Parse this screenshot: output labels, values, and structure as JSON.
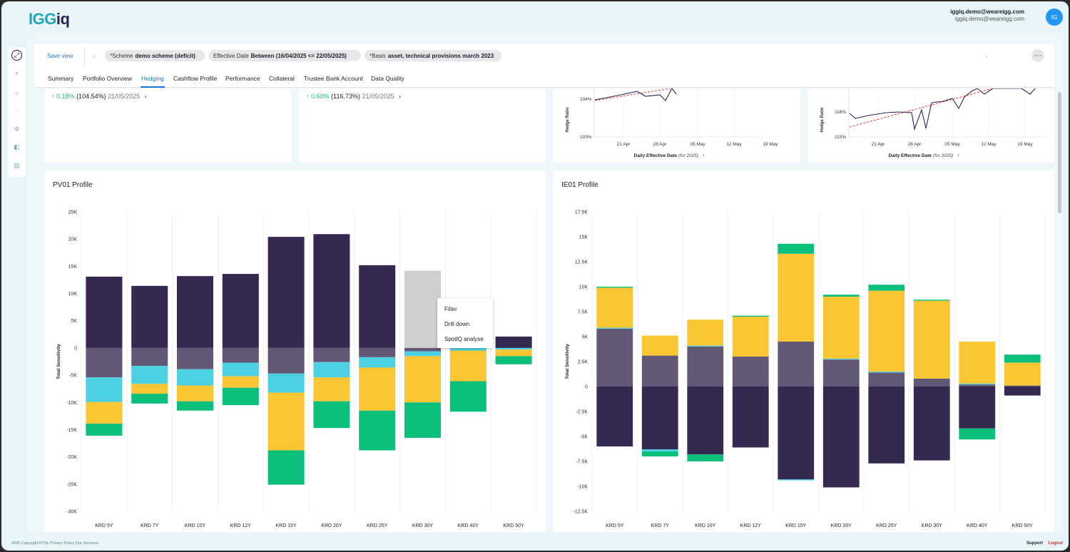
{
  "app": {
    "logo_part1": "IGG",
    "logo_part2": "iq",
    "user_primary": "iggiq.demo@weareigg.com",
    "user_secondary": "iggiq.demo@weareigg.com",
    "avatar_initials": "IG"
  },
  "rail": {
    "icons": [
      "expand-icon",
      "crosshair-icon",
      "settings-icon",
      "loader-icon",
      "network-icon",
      "book-icon",
      "table-icon"
    ]
  },
  "filterbar": {
    "save_view": "Save view",
    "chips": [
      {
        "label": "*Scheme",
        "value": "demo scheme (deficit)"
      },
      {
        "label": "Effective Date",
        "value": "Between (16/04/2025 <= 22/05/2025)"
      },
      {
        "label": "*Basis",
        "value": "asset, technical provisions march 2023"
      }
    ],
    "more": "···"
  },
  "tabs": [
    "Summary",
    "Portfolio Overview",
    "Hedging",
    "Cashflow Profile",
    "Performance",
    "Collateral",
    "Trustee Bank Account",
    "Data Quality"
  ],
  "active_tab": "Hedging",
  "kpis": [
    {
      "arrow": "↑",
      "pct": "0.18%",
      "abs": "(104.54%)",
      "date": "21/05/2025",
      "chev": "›"
    },
    {
      "arrow": "↑",
      "pct": "0.60%",
      "abs": "(116.73%)",
      "date": "21/05/2025",
      "chev": "›"
    }
  ],
  "mini_charts": [
    {
      "ylabel": "Hedge Ratio",
      "yticks": [
        "104%",
        "103%"
      ],
      "xticks": [
        "21 Apr",
        "28 Apr",
        "05 May",
        "12 May",
        "19 May"
      ],
      "xlabel": "Daily Effective Date",
      "xlabel_note": "(for 2025)",
      "sort_arrow": "↑"
    },
    {
      "ylabel": "Hedge Ratio",
      "yticks": [
        "116%",
        "115%"
      ],
      "xticks": [
        "21 Apr",
        "28 Apr",
        "05 May",
        "12 May",
        "19 May"
      ],
      "xlabel": "Daily Effective Date",
      "xlabel_note": "(for 2025)",
      "sort_arrow": "↑"
    }
  ],
  "context_menu": {
    "items": [
      "Filter",
      "Drill down",
      "SpotIQ analyse"
    ]
  },
  "footer": {
    "left": "2025 Copyright RTSL Privacy Policy Our Services",
    "support": "Support",
    "logout": "Logout"
  },
  "colors": {
    "dark": "#352952",
    "slate": "#625775",
    "cyan": "#4dd0e1",
    "yellow": "#fbc634",
    "green": "#0cc07c",
    "gray": "#cfcfcf"
  },
  "chart_data": [
    {
      "type": "bar",
      "title": "PV01 Profile",
      "ylabel": "Total Sensitivity",
      "ylim": [
        -30000,
        25000
      ],
      "yticks": [
        {
          "v": 25000,
          "t": "25K"
        },
        {
          "v": 20000,
          "t": "20K"
        },
        {
          "v": 15000,
          "t": "15K"
        },
        {
          "v": 10000,
          "t": "10K"
        },
        {
          "v": 5000,
          "t": "5K"
        },
        {
          "v": 0,
          "t": "0"
        },
        {
          "v": -5000,
          "t": "-5K"
        },
        {
          "v": -10000,
          "t": "-10K"
        },
        {
          "v": -15000,
          "t": "-15K"
        },
        {
          "v": -20000,
          "t": "-20K"
        },
        {
          "v": -25000,
          "t": "-25K"
        },
        {
          "v": -30000,
          "t": "-30K"
        }
      ],
      "categories": [
        "KRD 5Y",
        "KRD 7Y",
        "KRD 10Y",
        "KRD 12Y",
        "KRD 15Y",
        "KRD 20Y",
        "KRD 25Y",
        "KRD 30Y",
        "KRD 40Y",
        "KRD 50Y"
      ],
      "stacked": true,
      "highlight_index": 7,
      "series": [
        {
          "color": "dark",
          "values": [
            13100,
            11400,
            13200,
            13600,
            20400,
            20900,
            15200,
            14200,
            0,
            2100
          ]
        },
        {
          "color": "slate",
          "values": [
            -5400,
            -3300,
            -3900,
            -2700,
            -4700,
            -2600,
            -1700,
            -600,
            0,
            0
          ]
        },
        {
          "color": "cyan",
          "values": [
            -4500,
            -3300,
            -3000,
            -2500,
            -3500,
            -2800,
            -1900,
            -900,
            -500,
            -300
          ]
        },
        {
          "color": "yellow",
          "values": [
            -4000,
            -1800,
            -2900,
            -2100,
            -10600,
            -4400,
            -7900,
            -8500,
            -5600,
            -1200
          ]
        },
        {
          "color": "green",
          "values": [
            -2200,
            -1800,
            -1700,
            -3200,
            -6300,
            -4900,
            -7300,
            -6500,
            -5600,
            -1500
          ]
        }
      ]
    },
    {
      "type": "bar",
      "title": "IE01 Profile",
      "ylabel": "Total Sensitivity",
      "ylim": [
        -12500,
        17500
      ],
      "yticks": [
        {
          "v": 17500,
          "t": "17.5K"
        },
        {
          "v": 15000,
          "t": "15K"
        },
        {
          "v": 12500,
          "t": "12.5K"
        },
        {
          "v": 10000,
          "t": "10K"
        },
        {
          "v": 7500,
          "t": "7.5K"
        },
        {
          "v": 5000,
          "t": "5K"
        },
        {
          "v": 2500,
          "t": "2.5K"
        },
        {
          "v": 0,
          "t": "0"
        },
        {
          "v": -2500,
          "t": "-2.5K"
        },
        {
          "v": -5000,
          "t": "-5K"
        },
        {
          "v": -7500,
          "t": "-7.5K"
        },
        {
          "v": -10000,
          "t": "-10K"
        },
        {
          "v": -12500,
          "t": "-12.5K"
        }
      ],
      "categories": [
        "KRD 5Y",
        "KRD 7Y",
        "KRD 10Y",
        "KRD 12Y",
        "KRD 15Y",
        "KRD 20Y",
        "KRD 25Y",
        "KRD 30Y",
        "KRD 40Y",
        "KRD 50Y"
      ],
      "stacked": true,
      "series": [
        {
          "color": "dark",
          "values": [
            -6000,
            -6300,
            -6800,
            -6100,
            -9300,
            -10100,
            -7700,
            -7400,
            -4200,
            -900
          ]
        },
        {
          "color": "slate",
          "values": [
            5800,
            3100,
            4000,
            3000,
            4500,
            2700,
            1400,
            800,
            200,
            100
          ]
        },
        {
          "color": "cyan",
          "values": [
            100,
            -200,
            100,
            0,
            -100,
            100,
            100,
            0,
            100,
            0
          ]
        },
        {
          "color": "yellow",
          "values": [
            4000,
            2000,
            2600,
            4000,
            8800,
            6200,
            8100,
            7800,
            4200,
            2300
          ]
        },
        {
          "color": "green",
          "values": [
            100,
            -500,
            -700,
            100,
            1000,
            200,
            600,
            100,
            -1100,
            800
          ]
        }
      ]
    }
  ]
}
